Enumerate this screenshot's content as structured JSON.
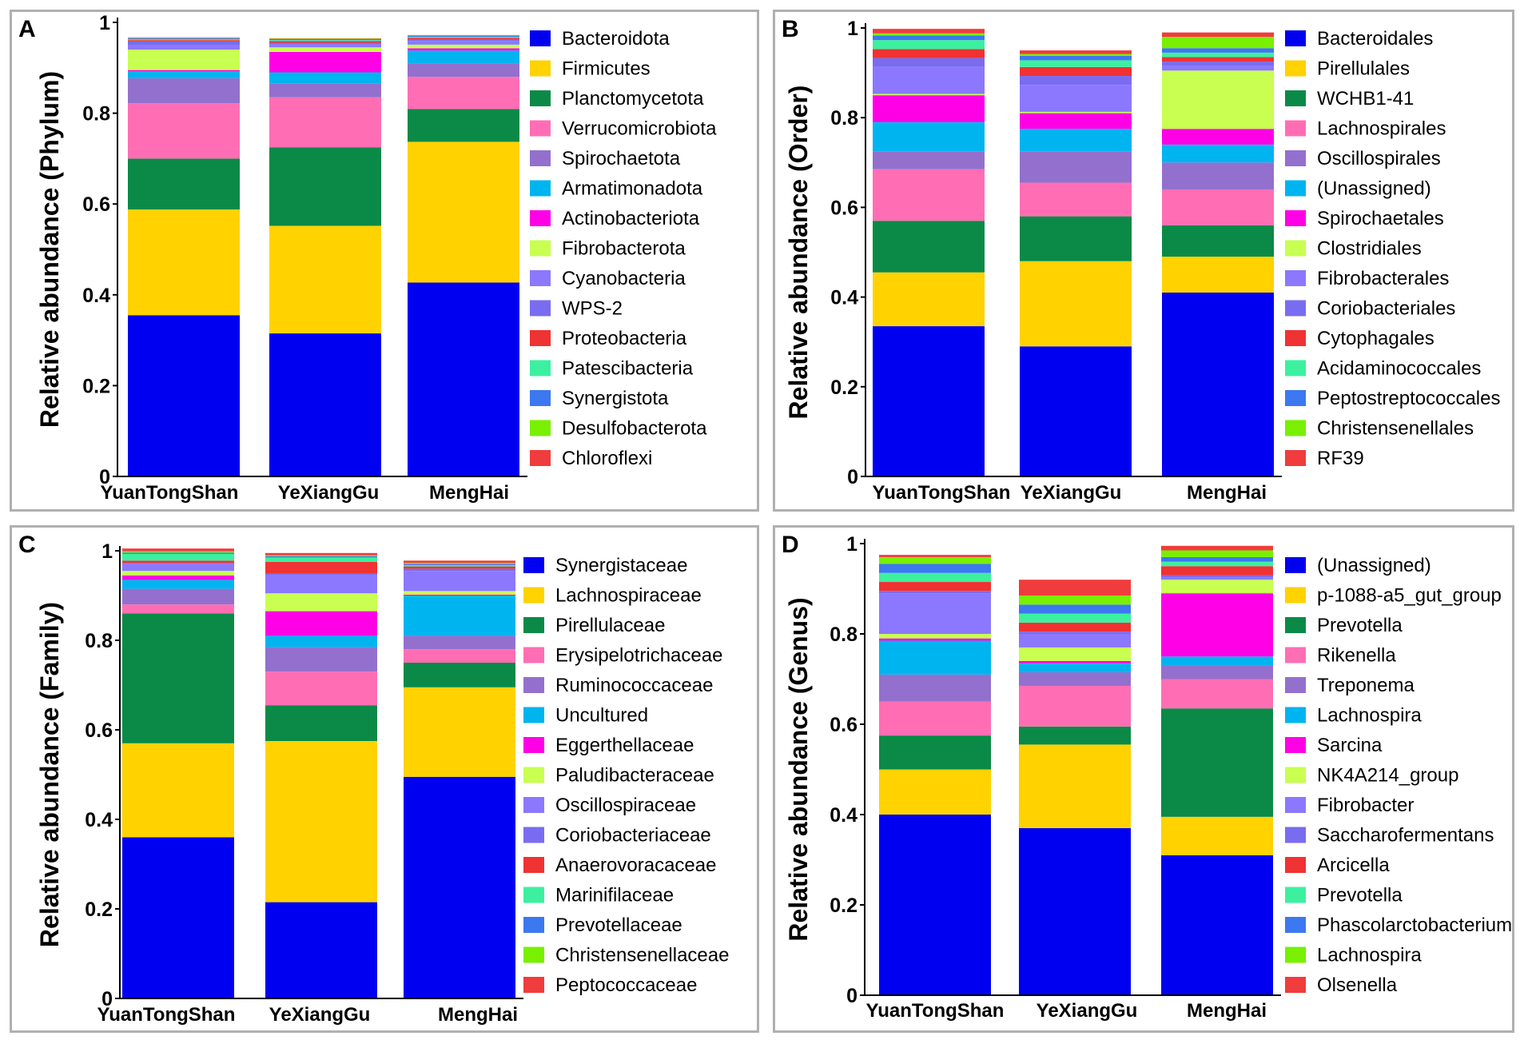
{
  "chart_data": [
    {
      "type": "bar",
      "stacked": true,
      "panel_label": "A",
      "title": "",
      "xlabel": "",
      "ylabel": "Relative abundance (Phylum)",
      "ylim": [
        0,
        1
      ],
      "yticks": [
        "0",
        "0.2",
        "0.4",
        "0.6",
        "0.8",
        "1"
      ],
      "categories": [
        "YuanTongShan",
        "YeXiangGu",
        "MengHai"
      ],
      "series": [
        {
          "name": "Bacteroidota",
          "color": "#0000f0",
          "values": [
            0.355,
            0.315,
            0.427
          ]
        },
        {
          "name": "Firmicutes",
          "color": "#ffd200",
          "values": [
            0.233,
            0.237,
            0.31
          ]
        },
        {
          "name": "Planctomycetota",
          "color": "#0a8a46",
          "values": [
            0.112,
            0.173,
            0.072
          ]
        },
        {
          "name": "Verrucomicrobiota",
          "color": "#ff6eb4",
          "values": [
            0.122,
            0.11,
            0.071
          ]
        },
        {
          "name": "Spirochaetota",
          "color": "#9370cd",
          "values": [
            0.055,
            0.03,
            0.03
          ]
        },
        {
          "name": "Armatimonadota",
          "color": "#00b4f0",
          "values": [
            0.015,
            0.025,
            0.028
          ]
        },
        {
          "name": "Actinobacteriota",
          "color": "#ff00e6",
          "values": [
            0.003,
            0.045,
            0.005
          ]
        },
        {
          "name": "Fibrobacterota",
          "color": "#c8ff50",
          "values": [
            0.045,
            0.01,
            0.008
          ]
        },
        {
          "name": "Cyanobacteria",
          "color": "#8c78ff",
          "values": [
            0.01,
            0.006,
            0.008
          ]
        },
        {
          "name": "WPS-2",
          "color": "#7a6cf0",
          "values": [
            0.008,
            0.004,
            0.004
          ]
        },
        {
          "name": "Proteobacteria",
          "color": "#f03232",
          "values": [
            0.003,
            0.004,
            0.003
          ]
        },
        {
          "name": "Patescibacteria",
          "color": "#3cf0a0",
          "values": [
            0.002,
            0.002,
            0.002
          ]
        },
        {
          "name": "Synergistota",
          "color": "#3c78f0",
          "values": [
            0.002,
            0.002,
            0.002
          ]
        },
        {
          "name": "Desulfobacterota",
          "color": "#78f000",
          "values": [
            0.001,
            0.001,
            0.001
          ]
        },
        {
          "name": "Chloroflexi",
          "color": "#f03c3c",
          "values": [
            0.001,
            0.001,
            0.001
          ]
        }
      ]
    },
    {
      "type": "bar",
      "stacked": true,
      "panel_label": "B",
      "title": "",
      "xlabel": "",
      "ylabel": "Relative abundance (Order)",
      "ylim": [
        0,
        1
      ],
      "yticks": [
        "0",
        "0.2",
        "0.4",
        "0.6",
        "0.8",
        "1"
      ],
      "categories": [
        "YuanTongShan",
        "YeXiangGu",
        "MengHai"
      ],
      "series": [
        {
          "name": "Bacteroidales",
          "color": "#0000f0",
          "values": [
            0.335,
            0.29,
            0.41
          ]
        },
        {
          "name": "Pirellulales",
          "color": "#ffd200",
          "values": [
            0.12,
            0.19,
            0.08
          ]
        },
        {
          "name": "WCHB1-41",
          "color": "#0a8a46",
          "values": [
            0.115,
            0.1,
            0.07
          ]
        },
        {
          "name": "Lachnospirales",
          "color": "#ff6eb4",
          "values": [
            0.115,
            0.075,
            0.08
          ]
        },
        {
          "name": "Oscillospirales",
          "color": "#9370cd",
          "values": [
            0.04,
            0.07,
            0.06
          ]
        },
        {
          "name": "(Unassigned)",
          "color": "#00b4f0",
          "values": [
            0.065,
            0.05,
            0.04
          ]
        },
        {
          "name": "Spirochaetales",
          "color": "#ff00e6",
          "values": [
            0.06,
            0.035,
            0.035
          ]
        },
        {
          "name": "Clostridiales",
          "color": "#c8ff50",
          "values": [
            0.003,
            0.003,
            0.13
          ]
        },
        {
          "name": "Fibrobacterales",
          "color": "#8c78ff",
          "values": [
            0.06,
            0.06,
            0.01
          ]
        },
        {
          "name": "Coriobacteriales",
          "color": "#7a6cf0",
          "values": [
            0.02,
            0.02,
            0.01
          ]
        },
        {
          "name": "Cytophagales",
          "color": "#f03232",
          "values": [
            0.02,
            0.02,
            0.01
          ]
        },
        {
          "name": "Acidaminococcales",
          "color": "#3cf0a0",
          "values": [
            0.02,
            0.015,
            0.01
          ]
        },
        {
          "name": "Peptostreptococcales",
          "color": "#3c78f0",
          "values": [
            0.01,
            0.01,
            0.01
          ]
        },
        {
          "name": "Christensenellales",
          "color": "#78f000",
          "values": [
            0.005,
            0.004,
            0.025
          ]
        },
        {
          "name": "RF39",
          "color": "#f03c3c",
          "values": [
            0.01,
            0.008,
            0.01
          ]
        }
      ]
    },
    {
      "type": "bar",
      "stacked": true,
      "panel_label": "C",
      "title": "",
      "xlabel": "",
      "ylabel": "Relative abundance (Family)",
      "ylim": [
        0,
        1
      ],
      "yticks": [
        "0",
        "0.2",
        "0.4",
        "0.6",
        "0.8",
        "1"
      ],
      "categories": [
        "YuanTongShan",
        "YeXiangGu",
        "MengHai"
      ],
      "series": [
        {
          "name": "Synergistaceae",
          "color": "#0000f0",
          "values": [
            0.36,
            0.215,
            0.495
          ]
        },
        {
          "name": "Lachnospiraceae",
          "color": "#ffd200",
          "values": [
            0.21,
            0.36,
            0.2
          ]
        },
        {
          "name": "Pirellulaceae",
          "color": "#0a8a46",
          "values": [
            0.29,
            0.08,
            0.055
          ]
        },
        {
          "name": "Erysipelotrichaceae",
          "color": "#ff6eb4",
          "values": [
            0.02,
            0.075,
            0.03
          ]
        },
        {
          "name": "Ruminococcaceae",
          "color": "#9370cd",
          "values": [
            0.035,
            0.055,
            0.03
          ]
        },
        {
          "name": "Uncultured",
          "color": "#00b4f0",
          "values": [
            0.02,
            0.025,
            0.09
          ]
        },
        {
          "name": "Eggerthellaceae",
          "color": "#ff00e6",
          "values": [
            0.01,
            0.055,
            0.002
          ]
        },
        {
          "name": "Paludibacteraceae",
          "color": "#c8ff50",
          "values": [
            0.01,
            0.04,
            0.008
          ]
        },
        {
          "name": "Oscillospiraceae",
          "color": "#8c78ff",
          "values": [
            0.015,
            0.04,
            0.045
          ]
        },
        {
          "name": "Coriobacteriaceae",
          "color": "#7a6cf0",
          "values": [
            0.003,
            0.005,
            0.005
          ]
        },
        {
          "name": "Anaerovoracaceae",
          "color": "#f03232",
          "values": [
            0.005,
            0.025,
            0.005
          ]
        },
        {
          "name": "Marinifilaceae",
          "color": "#3cf0a0",
          "values": [
            0.015,
            0.01,
            0.003
          ]
        },
        {
          "name": "Prevotellaceae",
          "color": "#3c78f0",
          "values": [
            0.003,
            0.003,
            0.003
          ]
        },
        {
          "name": "Christensenellaceae",
          "color": "#78f000",
          "values": [
            0.003,
            0.002,
            0.002
          ]
        },
        {
          "name": "Peptococcaceae",
          "color": "#f03c3c",
          "values": [
            0.006,
            0.005,
            0.005
          ]
        }
      ]
    },
    {
      "type": "bar",
      "stacked": true,
      "panel_label": "D",
      "title": "",
      "xlabel": "",
      "ylabel": "Relative abundance (Genus)",
      "ylim": [
        0,
        1
      ],
      "yticks": [
        "0",
        "0.2",
        "0.4",
        "0.6",
        "0.8",
        "1"
      ],
      "categories": [
        "YuanTongShan",
        "YeXiangGu",
        "MengHai"
      ],
      "series": [
        {
          "name": "(Unassigned)",
          "color": "#0000f0",
          "values": [
            0.4,
            0.37,
            0.31
          ]
        },
        {
          "name": "p-1088-a5_gut_group",
          "color": "#ffd200",
          "values": [
            0.1,
            0.185,
            0.085
          ]
        },
        {
          "name": "Prevotella",
          "color": "#0a8a46",
          "values": [
            0.075,
            0.04,
            0.24
          ]
        },
        {
          "name": "Rikenella",
          "color": "#ff6eb4",
          "values": [
            0.075,
            0.09,
            0.065
          ]
        },
        {
          "name": "Treponema",
          "color": "#9370cd",
          "values": [
            0.06,
            0.03,
            0.03
          ]
        },
        {
          "name": "Lachnospira",
          "color": "#00b4f0",
          "values": [
            0.075,
            0.02,
            0.02
          ]
        },
        {
          "name": "Sarcina",
          "color": "#ff00e6",
          "values": [
            0.005,
            0.005,
            0.14
          ]
        },
        {
          "name": "NK4A214_group",
          "color": "#c8ff50",
          "values": [
            0.01,
            0.03,
            0.03
          ]
        },
        {
          "name": "Fibrobacter",
          "color": "#8c78ff",
          "values": [
            0.09,
            0.03,
            0.005
          ]
        },
        {
          "name": "Saccharofermentans",
          "color": "#7a6cf0",
          "values": [
            0.005,
            0.005,
            0.005
          ]
        },
        {
          "name": "Arcicella",
          "color": "#f03232",
          "values": [
            0.02,
            0.02,
            0.02
          ]
        },
        {
          "name": "Prevotella",
          "color": "#3cf0a0",
          "values": [
            0.02,
            0.02,
            0.01
          ]
        },
        {
          "name": "Phascolarctobacterium",
          "color": "#3c78f0",
          "values": [
            0.02,
            0.02,
            0.01
          ]
        },
        {
          "name": "Lachnospira",
          "color": "#78f000",
          "values": [
            0.015,
            0.02,
            0.015
          ]
        },
        {
          "name": "Olsenella",
          "color": "#f03c3c",
          "values": [
            0.005,
            0.035,
            0.01
          ]
        }
      ]
    }
  ]
}
